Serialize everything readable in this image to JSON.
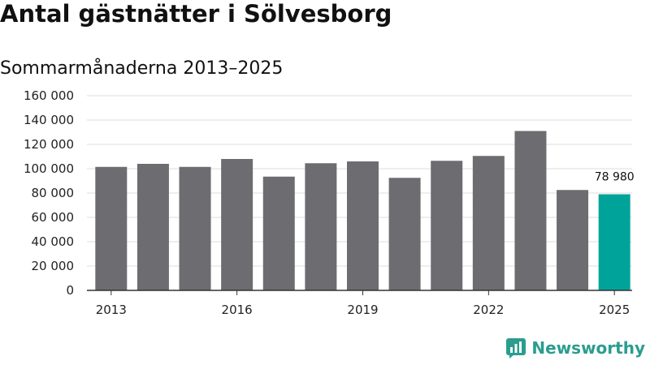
{
  "chart_data": {
    "type": "bar",
    "title": "Antal gästnätter i Sölvesborg",
    "subtitle": "Sommarmånaderna 2013–2025",
    "categories": [
      "2013",
      "2014",
      "2015",
      "2016",
      "2017",
      "2018",
      "2019",
      "2020",
      "2021",
      "2022",
      "2023",
      "2024",
      "2025"
    ],
    "values": [
      101500,
      104000,
      101500,
      108000,
      93500,
      104500,
      106000,
      92500,
      106500,
      110500,
      131000,
      82500,
      78980
    ],
    "x_tick_labels": [
      "2013",
      "2016",
      "2019",
      "2022",
      "2025"
    ],
    "y_tick_labels": [
      "0",
      "20 000",
      "40 000",
      "60 000",
      "80 000",
      "100 000",
      "120 000",
      "140 000",
      "160 000"
    ],
    "y_ticks": [
      0,
      20000,
      40000,
      60000,
      80000,
      100000,
      120000,
      140000,
      160000
    ],
    "ylim": [
      0,
      160000
    ],
    "grid": true,
    "highlight_index": 12,
    "highlight_label": "78 980",
    "colors": {
      "bar": "#6d6c71",
      "highlight": "#00a39a",
      "grid": "#dddddd",
      "axis": "#333333"
    }
  },
  "branding": {
    "name": "Newsworthy",
    "icon": "newsworthy-logo-icon",
    "color": "#2a9d8f"
  }
}
